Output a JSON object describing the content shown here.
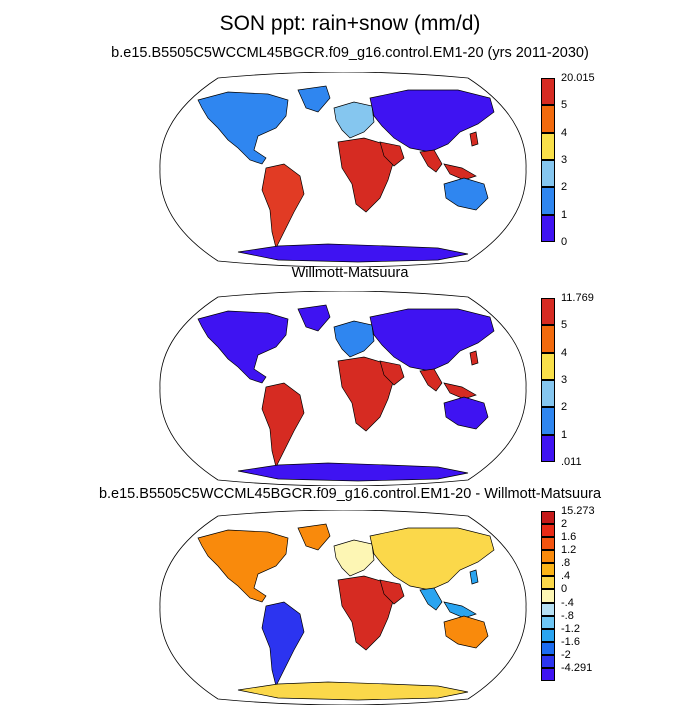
{
  "title": "SON ppt: rain+snow (mm/d)",
  "panels": [
    {
      "subtitle": "b.e15.B5505C5WCCML45BGCR.f09_g16.control.EM1-20 (yrs 2011-2030)",
      "colorbar": {
        "labels": [
          "20.015",
          "5",
          "4",
          "3",
          "2",
          "1",
          "0"
        ],
        "colors": [
          "#d62b22",
          "#f26a0d",
          "#f9e04a",
          "#85c6ef",
          "#2f86f0",
          "#3f13f2"
        ]
      },
      "fields": {
        "base": "#3f13f2",
        "n_america": "#2f86f0",
        "s_america": "#e13b24",
        "europe": "#85c6ef",
        "africa": "#d62b22",
        "asia": "#3f13f2",
        "se_asia": "#d62b22",
        "australia": "#2f86f0",
        "antarctica": "#3f13f2"
      }
    },
    {
      "subtitle": "Willmott-Matsuura",
      "colorbar": {
        "labels": [
          "11.769",
          "5",
          "4",
          "3",
          "2",
          "1",
          ".011"
        ],
        "colors": [
          "#d62b22",
          "#f26a0d",
          "#f9e04a",
          "#85c6ef",
          "#2f86f0",
          "#3f13f2"
        ]
      },
      "fields": {
        "base": "#3f13f2",
        "n_america": "#3f13f2",
        "s_america": "#d62b22",
        "europe": "#2f86f0",
        "africa": "#d62b22",
        "asia": "#3f13f2",
        "se_asia": "#d62b22",
        "australia": "#3f13f2",
        "antarctica": "#3f13f2"
      }
    },
    {
      "subtitle": "b.e15.B5505C5WCCML45BGCR.f09_g16.control.EM1-20 - Willmott-Matsuura",
      "colorbar": {
        "labels": [
          "15.273",
          "2",
          "1.6",
          "1.2",
          ".8",
          ".4",
          "0",
          "-.4",
          "-.8",
          "-1.2",
          "-1.6",
          "-2",
          "-4.291"
        ],
        "colors": [
          "#c41a1a",
          "#e82a16",
          "#f45410",
          "#f98a0c",
          "#fbb418",
          "#fbd84a",
          "#fdf6b4",
          "#b6e0f4",
          "#6ec6f4",
          "#2aa4f0",
          "#1c6cf0",
          "#2c34f0",
          "#3f13f2"
        ]
      },
      "fields": {
        "base": "#fbd84a",
        "n_america": "#f98a0c",
        "s_america": "#2c34f0",
        "europe": "#fdf6b4",
        "africa": "#d62b22",
        "asia": "#fbd84a",
        "se_asia": "#2aa4f0",
        "australia": "#f98a0c",
        "antarctica": "#fbd84a"
      }
    }
  ]
}
